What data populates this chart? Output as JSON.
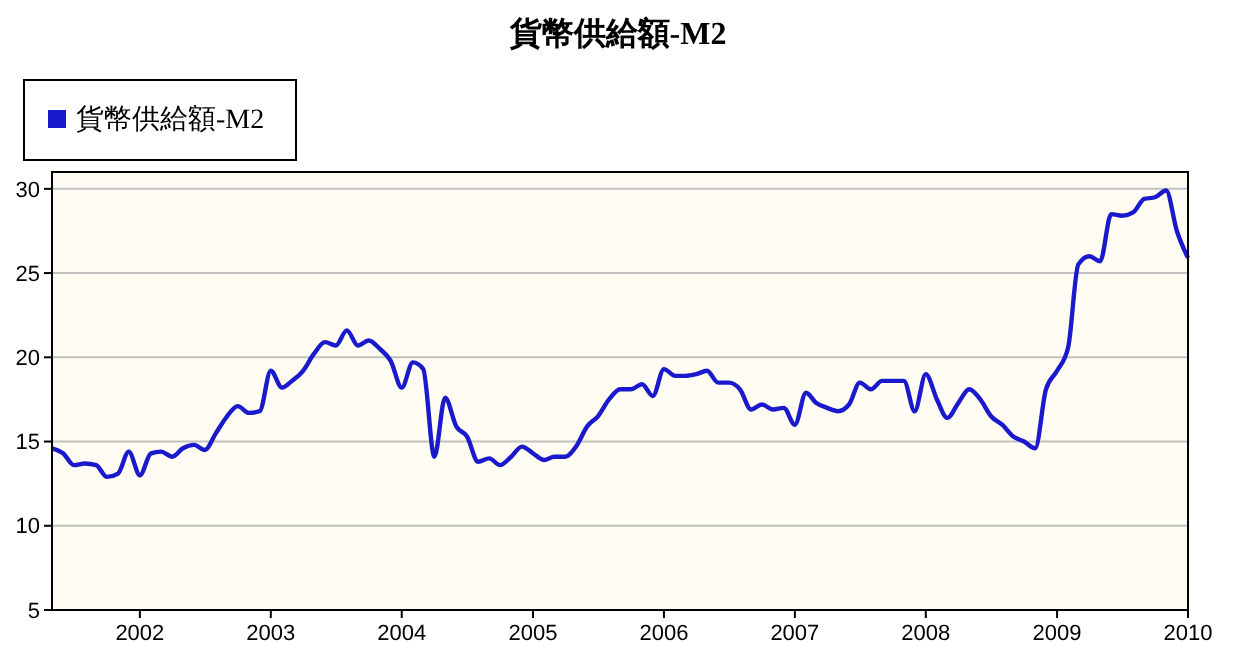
{
  "chart_data": {
    "type": "line",
    "title": "貨幣供給額-M2",
    "x": [
      "2001-05",
      "2001-06",
      "2001-07",
      "2001-08",
      "2001-09",
      "2001-10",
      "2001-11",
      "2001-12",
      "2002-01",
      "2002-02",
      "2002-03",
      "2002-04",
      "2002-05",
      "2002-06",
      "2002-07",
      "2002-08",
      "2002-09",
      "2002-10",
      "2002-11",
      "2002-12",
      "2003-01",
      "2003-02",
      "2003-03",
      "2003-04",
      "2003-05",
      "2003-06",
      "2003-07",
      "2003-08",
      "2003-09",
      "2003-10",
      "2003-11",
      "2003-12",
      "2004-01",
      "2004-02",
      "2004-03",
      "2004-04",
      "2004-05",
      "2004-06",
      "2004-07",
      "2004-08",
      "2004-09",
      "2004-10",
      "2004-11",
      "2004-12",
      "2005-01",
      "2005-02",
      "2005-03",
      "2005-04",
      "2005-05",
      "2005-06",
      "2005-07",
      "2005-08",
      "2005-09",
      "2005-10",
      "2005-11",
      "2005-12",
      "2006-01",
      "2006-02",
      "2006-03",
      "2006-04",
      "2006-05",
      "2006-06",
      "2006-07",
      "2006-08",
      "2006-09",
      "2006-10",
      "2006-11",
      "2006-12",
      "2007-01",
      "2007-02",
      "2007-03",
      "2007-04",
      "2007-05",
      "2007-06",
      "2007-07",
      "2007-08",
      "2007-09",
      "2007-10",
      "2007-11",
      "2007-12",
      "2008-01",
      "2008-02",
      "2008-03",
      "2008-04",
      "2008-05",
      "2008-06",
      "2008-07",
      "2008-08",
      "2008-09",
      "2008-10",
      "2008-11",
      "2008-12",
      "2009-01",
      "2009-02",
      "2009-03",
      "2009-04",
      "2009-05",
      "2009-06",
      "2009-07",
      "2009-08",
      "2009-09",
      "2009-10",
      "2009-11",
      "2009-12",
      "2010-01"
    ],
    "series": [
      {
        "name": "貨幣供給額-M2",
        "color": "#1a1acc",
        "values": [
          14.6,
          14.3,
          13.6,
          13.7,
          13.6,
          12.9,
          13.1,
          14.4,
          13.0,
          14.3,
          14.4,
          14.1,
          14.6,
          14.8,
          14.5,
          15.5,
          16.5,
          17.1,
          16.7,
          16.8,
          19.2,
          18.2,
          18.6,
          19.2,
          20.2,
          20.9,
          20.7,
          21.6,
          20.7,
          21.0,
          20.5,
          19.8,
          18.2,
          19.7,
          19.3,
          14.1,
          17.6,
          15.9,
          15.3,
          13.8,
          14.0,
          13.6,
          14.1,
          14.7,
          14.3,
          13.9,
          14.1,
          14.1,
          14.7,
          15.9,
          16.5,
          17.5,
          18.1,
          18.1,
          18.4,
          17.7,
          19.3,
          18.9,
          18.9,
          19.0,
          19.2,
          18.5,
          18.5,
          18.1,
          16.9,
          17.2,
          16.9,
          17.0,
          16.0,
          17.9,
          17.3,
          17.0,
          16.8,
          17.2,
          18.5,
          18.1,
          18.6,
          18.6,
          18.6,
          16.8,
          19.0,
          17.5,
          16.4,
          17.3,
          18.1,
          17.5,
          16.5,
          16.0,
          15.3,
          15.0,
          14.6,
          18.1,
          19.2,
          20.6,
          25.5,
          26.0,
          25.7,
          28.5,
          28.4,
          28.6,
          29.4,
          29.5,
          29.9,
          27.5,
          25.9
        ]
      }
    ],
    "xlim": [
      "2001-05",
      "2010-01"
    ],
    "xticks": [
      "2002",
      "2003",
      "2004",
      "2005",
      "2006",
      "2007",
      "2008",
      "2009",
      "2010"
    ],
    "ylim": [
      5,
      31
    ],
    "yticks": [
      5,
      10,
      15,
      20,
      25,
      30
    ],
    "grid": "y",
    "legend": "top left"
  }
}
